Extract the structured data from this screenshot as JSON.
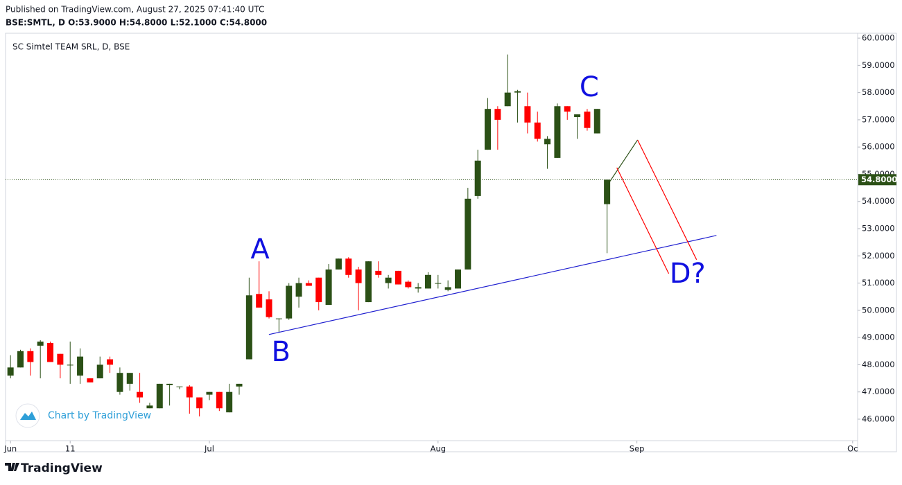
{
  "header": {
    "published": "Published on TradingView.com, August 27, 2025 07:41:40 UTC",
    "ohlc": "BSE:SMTL, D  O:53.9000 H:54.8000 L:52.1000 C:54.8000"
  },
  "chart_data": {
    "type": "candlestick",
    "title": "SC Simtel TEAM SRL, D, BSE",
    "watermark": "Chart by TradingView",
    "x": [
      0,
      1,
      2,
      3,
      4,
      5,
      6,
      7,
      8,
      9,
      10,
      11,
      12,
      13,
      14,
      15,
      16,
      17,
      18,
      19,
      20,
      21,
      22,
      23,
      24,
      25,
      26,
      27,
      28,
      29,
      30,
      31,
      32,
      33,
      34,
      35,
      36,
      37,
      38,
      39,
      40,
      41,
      42,
      43,
      44,
      45,
      46,
      47,
      48,
      49,
      50,
      51,
      52,
      53,
      54,
      55,
      56,
      57,
      58,
      59,
      60
    ],
    "open": [
      47.6,
      47.9,
      48.5,
      48.7,
      48.8,
      48.4,
      48.0,
      47.6,
      47.5,
      47.5,
      48.2,
      47.0,
      47.3,
      47.0,
      46.4,
      46.4,
      47.25,
      47.2,
      47.2,
      46.8,
      46.9,
      47.0,
      46.25,
      47.2,
      48.2,
      50.6,
      50.4,
      49.7,
      49.7,
      50.5,
      51.0,
      51.2,
      50.2,
      51.5,
      51.9,
      51.5,
      50.3,
      51.45,
      51.0,
      51.45,
      51.05,
      50.8,
      50.8,
      51.0,
      50.75,
      50.8,
      51.5,
      54.2,
      55.9,
      57.4,
      57.5,
      58.0,
      57.5,
      56.9,
      56.1,
      55.6,
      57.5,
      57.1,
      57.3,
      56.5,
      53.9
    ],
    "high": [
      48.35,
      48.55,
      48.6,
      48.9,
      48.85,
      48.4,
      48.85,
      48.6,
      47.5,
      48.3,
      48.3,
      47.9,
      47.7,
      47.7,
      46.6,
      47.3,
      47.3,
      47.2,
      47.25,
      46.8,
      47.0,
      47.0,
      47.3,
      47.3,
      51.2,
      51.8,
      50.7,
      49.7,
      51.0,
      51.2,
      51.1,
      51.2,
      51.7,
      51.9,
      51.95,
      51.6,
      51.8,
      51.8,
      51.3,
      51.45,
      51.1,
      51.0,
      51.4,
      51.3,
      51.1,
      51.5,
      54.5,
      55.9,
      57.8,
      57.5,
      59.4,
      58.1,
      58.0,
      57.3,
      56.4,
      57.6,
      57.5,
      57.2,
      57.4,
      57.4,
      54.8
    ],
    "low": [
      47.5,
      47.9,
      47.6,
      47.5,
      48.1,
      47.5,
      47.3,
      47.3,
      47.35,
      47.5,
      47.7,
      46.9,
      47.05,
      46.6,
      46.4,
      46.4,
      46.5,
      47.1,
      46.2,
      46.1,
      46.7,
      46.3,
      46.25,
      46.9,
      48.2,
      50.1,
      49.7,
      49.2,
      49.65,
      50.1,
      50.9,
      50.0,
      50.2,
      51.5,
      51.2,
      50.0,
      50.3,
      51.2,
      50.8,
      50.95,
      50.8,
      50.65,
      50.8,
      50.8,
      50.7,
      50.8,
      51.5,
      54.1,
      55.9,
      55.9,
      57.5,
      56.9,
      56.5,
      56.2,
      55.2,
      55.6,
      57.0,
      56.3,
      56.6,
      56.5,
      52.1
    ],
    "close": [
      47.9,
      48.5,
      48.1,
      48.85,
      48.1,
      48.0,
      48.0,
      48.3,
      47.35,
      48.0,
      48.0,
      47.7,
      47.7,
      46.8,
      46.5,
      47.3,
      47.3,
      47.2,
      46.8,
      46.4,
      47.0,
      46.4,
      47.0,
      47.3,
      50.55,
      50.1,
      49.75,
      49.7,
      50.9,
      51.0,
      50.9,
      50.3,
      51.5,
      51.9,
      51.3,
      51.0,
      51.8,
      51.3,
      51.2,
      50.95,
      50.85,
      50.85,
      51.3,
      51.0,
      50.85,
      51.5,
      54.1,
      55.5,
      57.4,
      57.0,
      58.0,
      58.05,
      56.9,
      56.3,
      56.3,
      57.5,
      57.3,
      57.2,
      56.7,
      57.4,
      54.8
    ],
    "up_color": "#2b5016",
    "down_color": "#ff0000",
    "xlim": [
      -0.5,
      85.2
    ],
    "ylim": [
      45.21,
      60.18
    ],
    "xticks": [
      {
        "value": 0,
        "label": "Jun"
      },
      {
        "value": 6,
        "label": "11"
      },
      {
        "value": 20,
        "label": "Jul"
      },
      {
        "value": 43,
        "label": "Aug"
      },
      {
        "value": 63,
        "label": "Sep"
      },
      {
        "value": 84.7,
        "label": "Oc"
      }
    ],
    "yticks": [
      {
        "value": 46,
        "label": "46.0000"
      },
      {
        "value": 47,
        "label": "47.0000"
      },
      {
        "value": 48,
        "label": "48.0000"
      },
      {
        "value": 49,
        "label": "49.0000"
      },
      {
        "value": 50,
        "label": "50.0000"
      },
      {
        "value": 51,
        "label": "51.0000"
      },
      {
        "value": 52,
        "label": "52.0000"
      },
      {
        "value": 53,
        "label": "53.0000"
      },
      {
        "value": 54,
        "label": "54.0000"
      },
      {
        "value": 55,
        "label": "55.0000"
      },
      {
        "value": 56,
        "label": "56.0000"
      },
      {
        "value": 57,
        "label": "57.0000"
      },
      {
        "value": 58,
        "label": "58.0000"
      },
      {
        "value": 59,
        "label": "59.0000"
      },
      {
        "value": 60,
        "label": "60.0000"
      }
    ],
    "last_price": {
      "value": 54.8,
      "label": "54.8000"
    },
    "lines": [
      {
        "color": "#1f1fd0",
        "x": [
          25.99,
          71.0
        ],
        "y": [
          49.11,
          52.75
        ]
      },
      {
        "color": "#2b5016",
        "x": [
          60.0,
          63.07
        ],
        "y": [
          54.58,
          56.26
        ]
      },
      {
        "color": "#ff0000",
        "x": [
          63.07,
          69.0
        ],
        "y": [
          56.26,
          51.86
        ]
      },
      {
        "color": "#ff0000",
        "x": [
          60.98,
          66.2
        ],
        "y": [
          55.24,
          51.35
        ]
      }
    ],
    "annotations": [
      {
        "text": "A",
        "x": 25.1,
        "y": 52.19
      },
      {
        "text": "B",
        "x": 27.2,
        "y": 48.42
      },
      {
        "text": "C",
        "x": 58.2,
        "y": 58.14
      },
      {
        "text": "D?",
        "x": 68.1,
        "y": 51.3
      }
    ],
    "annotation_color": "#1010e0"
  },
  "footer": {
    "brand": "TradingView"
  }
}
